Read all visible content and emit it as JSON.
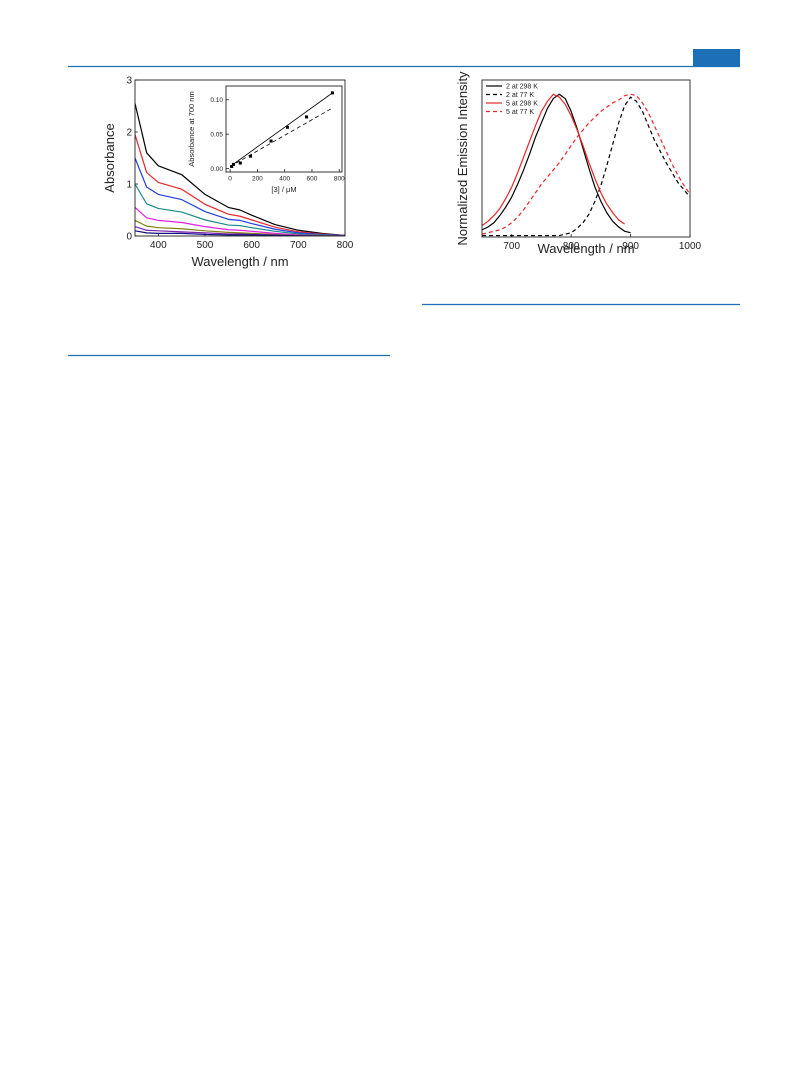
{
  "chart_data": [
    {
      "type": "line",
      "xlabel": "Wavelength / nm",
      "ylabel": "Absorbance",
      "xlim": [
        350,
        800
      ],
      "ylim": [
        0,
        3
      ],
      "xticks": [
        400,
        500,
        600,
        700,
        800
      ],
      "yticks": [
        0,
        1,
        2,
        3
      ],
      "x": [
        350,
        375,
        400,
        450,
        500,
        550,
        575,
        600,
        650,
        700,
        750,
        800
      ],
      "series": [
        {
          "color": "#000000",
          "values": [
            2.55,
            1.6,
            1.35,
            1.18,
            0.8,
            0.55,
            0.5,
            0.4,
            0.22,
            0.11,
            0.05,
            0.01
          ]
        },
        {
          "color": "#e8262a",
          "values": [
            1.95,
            1.22,
            1.03,
            0.9,
            0.61,
            0.42,
            0.38,
            0.31,
            0.17,
            0.08,
            0.04,
            0.01
          ]
        },
        {
          "color": "#1f3fe0",
          "values": [
            1.5,
            0.94,
            0.8,
            0.7,
            0.47,
            0.32,
            0.3,
            0.24,
            0.13,
            0.06,
            0.03,
            0.01
          ]
        },
        {
          "color": "#1a8a8a",
          "values": [
            1.0,
            0.62,
            0.53,
            0.46,
            0.31,
            0.21,
            0.2,
            0.16,
            0.09,
            0.04,
            0.02,
            0.0
          ]
        },
        {
          "color": "#e020e0",
          "values": [
            0.55,
            0.35,
            0.3,
            0.26,
            0.18,
            0.12,
            0.11,
            0.09,
            0.05,
            0.02,
            0.01,
            0.0
          ]
        },
        {
          "color": "#808010",
          "values": [
            0.3,
            0.19,
            0.16,
            0.14,
            0.1,
            0.07,
            0.06,
            0.05,
            0.03,
            0.01,
            0.01,
            0.0
          ]
        },
        {
          "color": "#7a20b0",
          "values": [
            0.18,
            0.11,
            0.1,
            0.08,
            0.06,
            0.04,
            0.04,
            0.03,
            0.02,
            0.01,
            0.0,
            0.0
          ]
        },
        {
          "color": "#101080",
          "values": [
            0.1,
            0.06,
            0.05,
            0.05,
            0.03,
            0.02,
            0.02,
            0.02,
            0.01,
            0.0,
            0.0,
            0.0
          ]
        }
      ]
    },
    {
      "type": "line",
      "xlabel": "Wavelength / nm",
      "ylabel": "Normalized Emission Intensity",
      "xlim": [
        650,
        1000
      ],
      "ylim": [
        0,
        1.1
      ],
      "xticks": [
        700,
        800,
        900,
        1000
      ],
      "legend": "upper left",
      "x": [
        650,
        660,
        670,
        680,
        690,
        700,
        710,
        720,
        730,
        740,
        750,
        760,
        770,
        780,
        790,
        800,
        810,
        820,
        830,
        840,
        850,
        860,
        870,
        880,
        890,
        900,
        910,
        920,
        930,
        940,
        950,
        960,
        970,
        980,
        990,
        1000
      ],
      "series": [
        {
          "name": "2 at 298 K",
          "color": "#000000",
          "linestyle": "solid",
          "values": [
            0.05,
            0.07,
            0.1,
            0.15,
            0.21,
            0.28,
            0.37,
            0.47,
            0.58,
            0.7,
            0.8,
            0.9,
            0.97,
            1.0,
            0.97,
            0.88,
            0.76,
            0.62,
            0.48,
            0.35,
            0.25,
            0.17,
            0.11,
            0.07,
            0.04,
            0.03,
            null,
            null,
            null,
            null,
            null,
            null,
            null,
            null,
            null,
            null
          ]
        },
        {
          "name": "2 at 77 K",
          "color": "#000000",
          "linestyle": "dashed",
          "values": [
            0.01,
            0.01,
            0.01,
            0.01,
            0.01,
            0.01,
            0.01,
            0.01,
            0.01,
            0.01,
            0.01,
            0.01,
            0.01,
            0.01,
            0.02,
            0.03,
            0.06,
            0.1,
            0.16,
            0.25,
            0.36,
            0.5,
            0.65,
            0.8,
            0.92,
            0.98,
            0.95,
            0.88,
            0.78,
            0.68,
            0.6,
            0.52,
            0.45,
            0.38,
            0.33,
            0.28
          ]
        },
        {
          "name": "5 at 298 K",
          "color": "#e8262a",
          "linestyle": "solid",
          "values": [
            0.08,
            0.11,
            0.15,
            0.2,
            0.27,
            0.35,
            0.45,
            0.56,
            0.67,
            0.78,
            0.88,
            0.95,
            1.0,
            0.98,
            0.93,
            0.85,
            0.75,
            0.64,
            0.52,
            0.41,
            0.31,
            0.23,
            0.17,
            0.12,
            0.09,
            null,
            null,
            null,
            null,
            null,
            null,
            null,
            null,
            null,
            null,
            null
          ]
        },
        {
          "name": "5 at 77 K",
          "color": "#e8262a",
          "linestyle": "dashed",
          "values": [
            0.02,
            0.03,
            0.04,
            0.05,
            0.07,
            0.1,
            0.14,
            0.19,
            0.25,
            0.31,
            0.37,
            0.42,
            0.47,
            0.52,
            0.58,
            0.64,
            0.7,
            0.75,
            0.8,
            0.84,
            0.88,
            0.91,
            0.94,
            0.96,
            0.99,
            1.0,
            0.99,
            0.94,
            0.87,
            0.78,
            0.69,
            0.6,
            0.51,
            0.43,
            0.36,
            0.3
          ]
        }
      ]
    },
    {
      "type": "scatter",
      "xlabel": "[3] / μM",
      "ylabel": "Absorbance at 700 nm",
      "xlim": [
        -30,
        820
      ],
      "ylim": [
        -0.005,
        0.12
      ],
      "xticks": [
        0,
        200,
        400,
        600,
        800
      ],
      "yticks": [
        {
          "value": 0,
          "label": "0.00"
        },
        {
          "value": 0.05,
          "label": "0.05"
        },
        {
          "value": 0.1,
          "label": "0.10"
        }
      ],
      "series": [
        {
          "color": "#000000",
          "linestyle": "markers",
          "x": [
            12,
            25,
            75,
            150,
            300,
            420,
            560,
            750
          ],
          "values": [
            0.003,
            0.006,
            0.008,
            0.018,
            0.04,
            0.06,
            0.075,
            0.11
          ]
        },
        {
          "color": "#000000",
          "linestyle": "solid",
          "x": [
            0,
            750
          ],
          "values": [
            0.003,
            0.11
          ]
        },
        {
          "color": "#000000",
          "linestyle": "dashed",
          "x": [
            0,
            750
          ],
          "values": [
            0.003,
            0.088
          ]
        }
      ]
    }
  ]
}
